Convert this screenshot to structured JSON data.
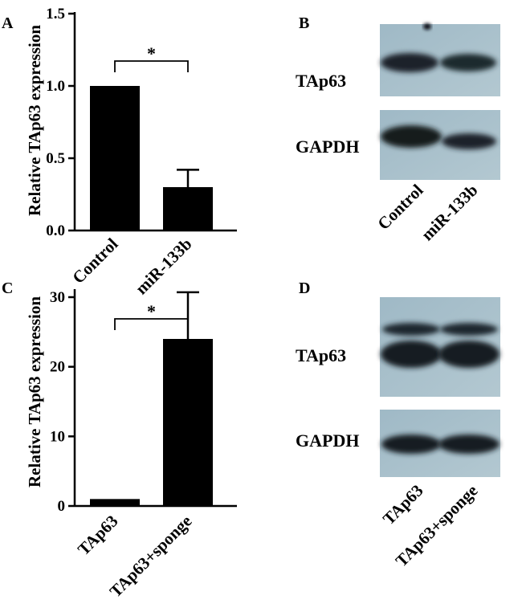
{
  "panels": {
    "A": "A",
    "B": "B",
    "C": "C",
    "D": "D"
  },
  "chart_data": [
    {
      "id": "A",
      "type": "bar",
      "categories": [
        "Control",
        "miR-133b"
      ],
      "values": [
        1.0,
        0.3
      ],
      "errors": [
        0,
        0.12
      ],
      "ylabel": "Relative TAp63 expression",
      "ylim": [
        0,
        1.5
      ],
      "yticks": [
        "0.0",
        "0.5",
        "1.0",
        "1.5"
      ],
      "significance": "*",
      "grid": false
    },
    {
      "id": "C",
      "type": "bar",
      "categories": [
        "TAp63",
        "TAp63+sponge"
      ],
      "values": [
        1.0,
        24.0
      ],
      "errors": [
        0,
        6.7
      ],
      "ylabel": "Relative TAp63 expression",
      "ylim": [
        0,
        30
      ],
      "yticks": [
        "0",
        "10",
        "20",
        "30"
      ],
      "significance": "*",
      "grid": false
    }
  ],
  "blots": [
    {
      "id": "B",
      "bands": [
        "TAp63",
        "GAPDH"
      ],
      "lanes": [
        "Control",
        "miR-133b"
      ]
    },
    {
      "id": "D",
      "bands": [
        "TAp63",
        "GAPDH"
      ],
      "lanes": [
        "TAp63",
        "TAp63+sponge"
      ]
    }
  ]
}
